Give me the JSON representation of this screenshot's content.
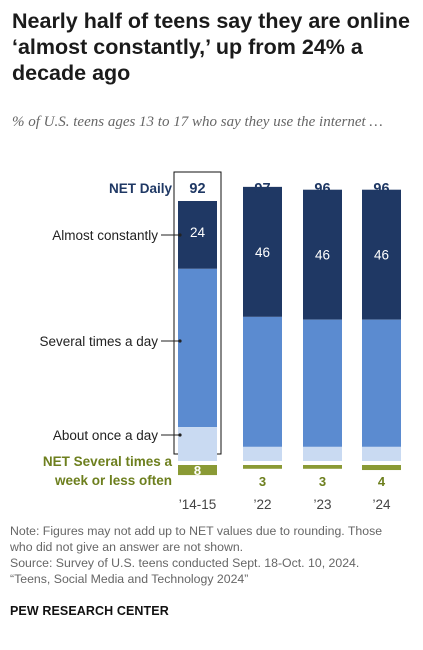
{
  "title": "Nearly half of teens say they are online ‘almost constantly,’ up from 24% a decade ago",
  "subtitle": "% of U.S. teens ages 13 to 17 who say they use the internet …",
  "note": {
    "line1": "Note: Figures may not add up to NET values due to rounding. Those",
    "line2": "who did not give an answer are not shown.",
    "line3": "Source: Survey of U.S. teens conducted Sept. 18-Oct. 10, 2024.",
    "line4": "“Teens, Social Media and Technology 2024”"
  },
  "brand": "PEW RESEARCH CENTER",
  "colors": {
    "almost_constantly": "#1f3864",
    "several_times": "#5b8bd0",
    "once_a_day": "#c9daf2",
    "several_week_or_less": "#8a9a35",
    "net_daily_text": "#1f3864",
    "net_week_text": "#6d7f1e"
  },
  "chart_data": {
    "type": "bar",
    "stacked": true,
    "categories": [
      "’14-15",
      "’22",
      "’23",
      "’24"
    ],
    "net_daily_label": "NET Daily",
    "net_daily": [
      "92",
      "97",
      "96",
      "96"
    ],
    "series": [
      {
        "name": "Almost constantly",
        "values": [
          24,
          46,
          46,
          46
        ],
        "labels": [
          "24",
          "46",
          "46",
          "46"
        ]
      },
      {
        "name": "Several times a day",
        "values": [
          56,
          46,
          45,
          45
        ]
      },
      {
        "name": "About once a day",
        "values": [
          12,
          5,
          5,
          5
        ]
      },
      {
        "name": "NET Several times a week or less often",
        "label_lines": [
          "NET Several times a",
          "week or less often"
        ],
        "values": [
          8,
          3,
          3,
          4
        ],
        "labels": [
          "8",
          "3",
          "3",
          "4"
        ]
      }
    ],
    "highlighted_category": "’14-15",
    "ylim": [
      0,
      100
    ]
  }
}
